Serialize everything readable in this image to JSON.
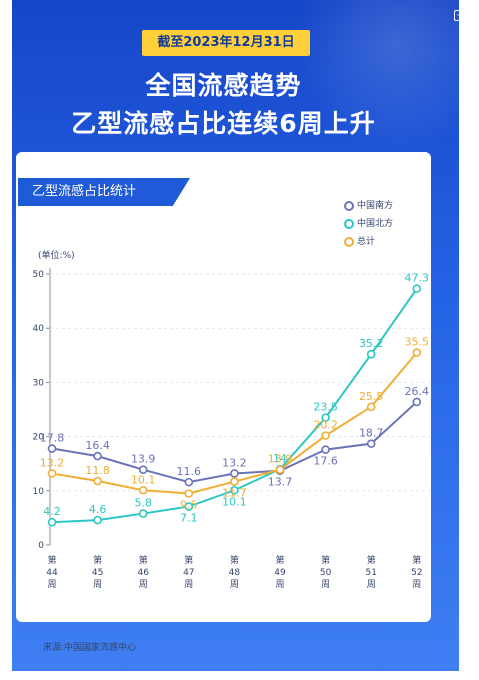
{
  "badge": "截至2023年12月31日",
  "headline": [
    "全国流感趋势",
    "乙型流感占比连续6周上升"
  ],
  "card_tag": "乙型流感占比统计",
  "unit_label": "(单位:%)",
  "source": "来源:中国国家流感中心",
  "corner_icon": "exit-icon",
  "colors": {
    "poster_bg": "#2563e6",
    "badge": "#ffcf3a",
    "south": "#6a74b9",
    "north": "#2cc7c4",
    "total": "#f0ae35",
    "axis": "#8a8f9c"
  },
  "chart_data": {
    "type": "line",
    "title": "乙型流感占比统计",
    "ylabel": "(单位:%)",
    "xlabel": "",
    "categories": [
      "第44周",
      "第45周",
      "第46周",
      "第47周",
      "第48周",
      "第49周",
      "第50周",
      "第51周",
      "第52周"
    ],
    "y_ticks": [
      0,
      10,
      20,
      30,
      40,
      50
    ],
    "ylim": [
      0,
      50
    ],
    "grid": "horizontal dashed",
    "legend": "top-right",
    "series": [
      {
        "name": "中国南方",
        "color": "#6a74b9",
        "values": [
          17.8,
          16.4,
          13.9,
          11.6,
          13.2,
          13.7,
          17.6,
          18.7,
          26.4
        ],
        "labels": [
          "17.8",
          "16.4",
          "13.9",
          "11.6",
          "13.2",
          "13.7",
          "17.6",
          "18.7",
          "26.4"
        ]
      },
      {
        "name": "中国北方",
        "color": "#2cc7c4",
        "values": [
          4.2,
          4.6,
          5.8,
          7.1,
          10.1,
          14,
          23.5,
          35.2,
          47.3
        ],
        "labels": [
          "4.2",
          "4.6",
          "5.8",
          "7.1",
          "10.1",
          "14",
          "23.5",
          "35.2",
          "47.3"
        ]
      },
      {
        "name": "总计",
        "color": "#f0ae35",
        "values": [
          13.2,
          11.8,
          10.1,
          9.5,
          11.7,
          13.9,
          20.2,
          25.5,
          35.5
        ],
        "labels": [
          "13.2",
          "11.8",
          "10.1",
          "9.5",
          "11.7",
          "13.9",
          "20.2",
          "25.5",
          "35.5"
        ]
      }
    ]
  }
}
